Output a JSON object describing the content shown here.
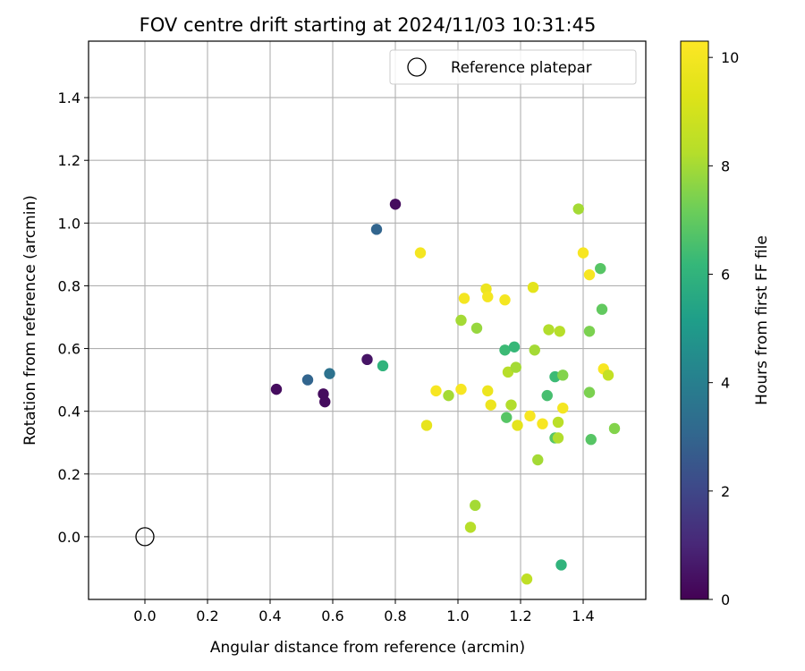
{
  "chart_data": {
    "type": "scatter",
    "title": "FOV centre drift starting at 2024/11/03 10:31:45",
    "xlabel": "Angular distance from reference (arcmin)",
    "ylabel": "Rotation from reference (arcmin)",
    "xlim": [
      -0.18,
      1.6
    ],
    "ylim": [
      -0.2,
      1.58
    ],
    "xticks": [
      0.0,
      0.2,
      0.4,
      0.6,
      0.8,
      1.0,
      1.2,
      1.4
    ],
    "yticks": [
      0.0,
      0.2,
      0.4,
      0.6,
      0.8,
      1.0,
      1.2,
      1.4
    ],
    "grid": true,
    "legend": {
      "placement": "top-right",
      "entries": [
        "Reference platepar"
      ]
    },
    "colorbar": {
      "label": "Hours from first FF file",
      "colormap": "viridis",
      "range": [
        0,
        10.3
      ],
      "ticks": [
        0,
        2,
        4,
        6,
        8,
        10
      ]
    },
    "reference_point": {
      "x": 0.0,
      "y": 0.0,
      "marker": "hollow-circle",
      "label": "Reference platepar"
    },
    "points": [
      {
        "x": 0.8,
        "y": 1.06,
        "c": 0.3
      },
      {
        "x": 0.74,
        "y": 0.98,
        "c": 3.0
      },
      {
        "x": 0.42,
        "y": 0.47,
        "c": 0.3
      },
      {
        "x": 0.52,
        "y": 0.5,
        "c": 3.0
      },
      {
        "x": 0.59,
        "y": 0.52,
        "c": 3.5
      },
      {
        "x": 0.57,
        "y": 0.455,
        "c": 0.3
      },
      {
        "x": 0.575,
        "y": 0.43,
        "c": 0.3
      },
      {
        "x": 0.71,
        "y": 0.565,
        "c": 0.5
      },
      {
        "x": 0.76,
        "y": 0.545,
        "c": 6.0
      },
      {
        "x": 0.88,
        "y": 0.905,
        "c": 10.0
      },
      {
        "x": 0.9,
        "y": 0.355,
        "c": 9.6
      },
      {
        "x": 0.93,
        "y": 0.465,
        "c": 10.1
      },
      {
        "x": 0.97,
        "y": 0.45,
        "c": 8.0
      },
      {
        "x": 1.01,
        "y": 0.69,
        "c": 8.0
      },
      {
        "x": 1.01,
        "y": 0.47,
        "c": 10.1
      },
      {
        "x": 1.02,
        "y": 0.76,
        "c": 10.0
      },
      {
        "x": 1.04,
        "y": 0.03,
        "c": 8.3
      },
      {
        "x": 1.055,
        "y": 0.1,
        "c": 8.0
      },
      {
        "x": 1.06,
        "y": 0.665,
        "c": 7.8
      },
      {
        "x": 1.09,
        "y": 0.79,
        "c": 9.8
      },
      {
        "x": 1.095,
        "y": 0.765,
        "c": 10.0
      },
      {
        "x": 1.095,
        "y": 0.465,
        "c": 9.8
      },
      {
        "x": 1.105,
        "y": 0.42,
        "c": 9.8
      },
      {
        "x": 1.15,
        "y": 0.755,
        "c": 10.0
      },
      {
        "x": 1.15,
        "y": 0.595,
        "c": 6.3
      },
      {
        "x": 1.155,
        "y": 0.38,
        "c": 6.8
      },
      {
        "x": 1.16,
        "y": 0.525,
        "c": 8.3
      },
      {
        "x": 1.17,
        "y": 0.42,
        "c": 8.2
      },
      {
        "x": 1.18,
        "y": 0.605,
        "c": 6.2
      },
      {
        "x": 1.185,
        "y": 0.54,
        "c": 8.0
      },
      {
        "x": 1.19,
        "y": 0.355,
        "c": 9.5
      },
      {
        "x": 1.22,
        "y": -0.135,
        "c": 8.5
      },
      {
        "x": 1.23,
        "y": 0.385,
        "c": 10.1
      },
      {
        "x": 1.24,
        "y": 0.795,
        "c": 9.5
      },
      {
        "x": 1.245,
        "y": 0.595,
        "c": 8.0
      },
      {
        "x": 1.255,
        "y": 0.245,
        "c": 8.0
      },
      {
        "x": 1.27,
        "y": 0.36,
        "c": 10.1
      },
      {
        "x": 1.285,
        "y": 0.45,
        "c": 6.5
      },
      {
        "x": 1.29,
        "y": 0.66,
        "c": 8.2
      },
      {
        "x": 1.31,
        "y": 0.51,
        "c": 6.3
      },
      {
        "x": 1.31,
        "y": 0.315,
        "c": 6.8
      },
      {
        "x": 1.32,
        "y": 0.315,
        "c": 8.2
      },
      {
        "x": 1.32,
        "y": 0.365,
        "c": 8.4
      },
      {
        "x": 1.325,
        "y": 0.655,
        "c": 8.3
      },
      {
        "x": 1.33,
        "y": -0.09,
        "c": 6.0
      },
      {
        "x": 1.335,
        "y": 0.41,
        "c": 10.0
      },
      {
        "x": 1.335,
        "y": 0.515,
        "c": 7.5
      },
      {
        "x": 1.385,
        "y": 1.045,
        "c": 8.0
      },
      {
        "x": 1.4,
        "y": 0.905,
        "c": 10.1
      },
      {
        "x": 1.42,
        "y": 0.835,
        "c": 10.1
      },
      {
        "x": 1.42,
        "y": 0.655,
        "c": 7.4
      },
      {
        "x": 1.42,
        "y": 0.46,
        "c": 7.4
      },
      {
        "x": 1.425,
        "y": 0.31,
        "c": 6.8
      },
      {
        "x": 1.455,
        "y": 0.855,
        "c": 6.8
      },
      {
        "x": 1.46,
        "y": 0.725,
        "c": 7.0
      },
      {
        "x": 1.465,
        "y": 0.535,
        "c": 10.1
      },
      {
        "x": 1.48,
        "y": 0.515,
        "c": 8.6
      },
      {
        "x": 1.5,
        "y": 0.345,
        "c": 7.5
      }
    ]
  }
}
